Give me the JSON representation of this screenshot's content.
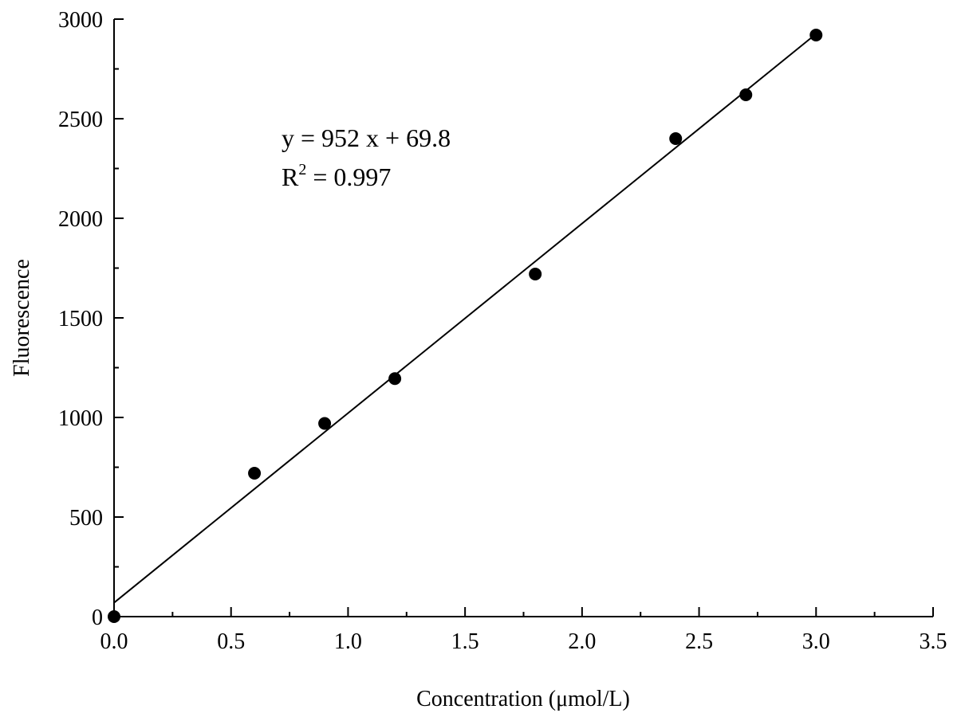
{
  "chart_data": {
    "type": "scatter",
    "title": "",
    "xlabel": "Concentration (μmol/L)",
    "ylabel": "Fluorescence",
    "xlim": [
      0,
      3.5
    ],
    "ylim": [
      0,
      3000
    ],
    "x_ticks": [
      "0.0",
      "0.5",
      "1.0",
      "1.5",
      "2.0",
      "2.5",
      "3.0",
      "3.5"
    ],
    "y_ticks": [
      "0",
      "500",
      "1000",
      "1500",
      "2000",
      "2500",
      "3000"
    ],
    "grid": false,
    "legend": "none",
    "marker_color": "#000000",
    "series": [
      {
        "points": [
          {
            "x": 0.0,
            "y": 0
          },
          {
            "x": 0.6,
            "y": 720
          },
          {
            "x": 0.9,
            "y": 970
          },
          {
            "x": 1.2,
            "y": 1195
          },
          {
            "x": 1.8,
            "y": 1720
          },
          {
            "x": 2.4,
            "y": 2400
          },
          {
            "x": 2.7,
            "y": 2620
          },
          {
            "x": 3.0,
            "y": 2920
          }
        ]
      }
    ],
    "fit_line": {
      "slope": 952,
      "intercept": 69.8,
      "x_range": [
        0,
        3.0
      ]
    },
    "annotations": {
      "equation": "y = 952 x + 69.8",
      "r2_prefix": "R",
      "r2_superscript": "2",
      "r2_suffix": " = 0.997"
    }
  }
}
